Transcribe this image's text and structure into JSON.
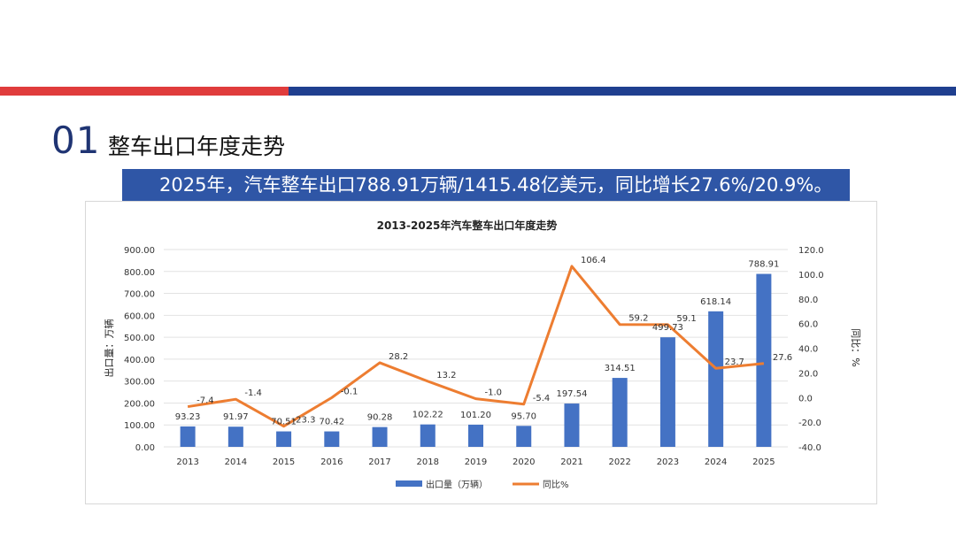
{
  "header": {
    "section_number": "01",
    "section_title": "整车出口年度走势",
    "banner_text": "2025年，汽车整车出口788.91万辆/1415.48亿美元，同比增长27.6%/20.9%。"
  },
  "colors": {
    "red": "#e03c3c",
    "navy": "#1f3f8f",
    "bar": "#4472c4",
    "line": "#ed7d31"
  },
  "chart_data": {
    "type": "bar+line",
    "title": "2013-2025年汽车整车出口年度走势",
    "categories": [
      "2013",
      "2014",
      "2015",
      "2016",
      "2017",
      "2018",
      "2019",
      "2020",
      "2021",
      "2022",
      "2023",
      "2024",
      "2025"
    ],
    "series": [
      {
        "name": "出口量（万辆）",
        "type": "bar",
        "axis": "left",
        "values": [
          93.23,
          91.97,
          70.51,
          70.42,
          90.28,
          102.22,
          101.2,
          95.7,
          197.54,
          314.51,
          499.73,
          618.14,
          788.91
        ],
        "labels": [
          "93.23",
          "91.97",
          "70.51",
          "70.42",
          "90.28",
          "102.22",
          "101.20",
          "95.70",
          "197.54",
          "314.51",
          "499.73",
          "618.14",
          "788.91"
        ]
      },
      {
        "name": "同比%",
        "type": "line",
        "axis": "right",
        "values": [
          -7.4,
          -1.4,
          -23.3,
          -0.1,
          28.2,
          13.2,
          -1.0,
          -5.4,
          106.4,
          59.2,
          59.1,
          23.7,
          27.6
        ],
        "labels": [
          "-7.4",
          "-1.4",
          "-23.3",
          "-0.1",
          "28.2",
          "13.2",
          "-1.0",
          "-5.4",
          "106.4",
          "59.2",
          "59.1",
          "23.7",
          "27.6"
        ]
      }
    ],
    "left_axis": {
      "label": "出口量：万辆",
      "min": 0,
      "max": 900,
      "step": 100,
      "ticks": [
        "0.00",
        "100.00",
        "200.00",
        "300.00",
        "400.00",
        "500.00",
        "600.00",
        "700.00",
        "800.00",
        "900.00"
      ]
    },
    "right_axis": {
      "label": "同比：%",
      "min": -40,
      "max": 120,
      "step": 20,
      "ticks": [
        "-40.0",
        "-20.0",
        "0.0",
        "20.0",
        "40.0",
        "60.0",
        "80.0",
        "100.0",
        "120.0"
      ]
    },
    "legend": [
      "出口量（万辆）",
      "同比%"
    ],
    "legend_position": "bottom",
    "grid": true
  }
}
